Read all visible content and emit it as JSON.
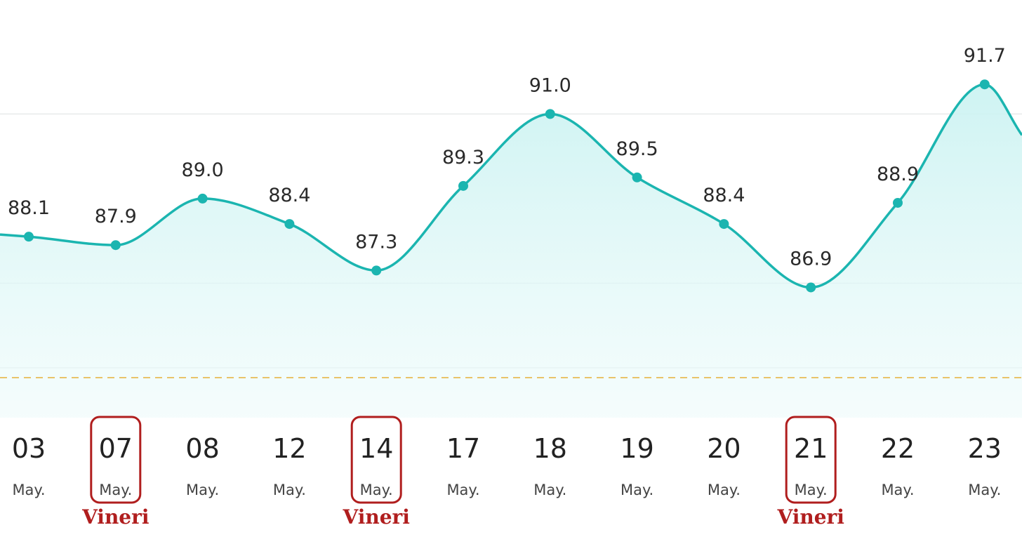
{
  "chart_data": {
    "type": "area",
    "title": "",
    "xlabel": "",
    "ylabel": "",
    "ylim": [
      84.9,
      92.45
    ],
    "grid": true,
    "reference_line": "dashed",
    "colors": {
      "line": "#1bb5b0",
      "fill": "#d8f6f6",
      "highlight": "#b01e1e",
      "reference": "#e8c36a"
    },
    "x": [
      {
        "day": "03",
        "month": "May.",
        "note": ""
      },
      {
        "day": "07",
        "month": "May.",
        "note": "Vineri"
      },
      {
        "day": "08",
        "month": "May.",
        "note": ""
      },
      {
        "day": "12",
        "month": "May.",
        "note": ""
      },
      {
        "day": "14",
        "month": "May.",
        "note": "Vineri"
      },
      {
        "day": "17",
        "month": "May.",
        "note": ""
      },
      {
        "day": "18",
        "month": "May.",
        "note": ""
      },
      {
        "day": "19",
        "month": "May.",
        "note": ""
      },
      {
        "day": "20",
        "month": "May.",
        "note": ""
      },
      {
        "day": "21",
        "month": "May.",
        "note": "Vineri"
      },
      {
        "day": "22",
        "month": "May.",
        "note": ""
      },
      {
        "day": "23",
        "month": "May.",
        "note": ""
      }
    ],
    "values": [
      88.1,
      87.9,
      89.0,
      88.4,
      87.3,
      89.3,
      91.0,
      89.5,
      88.4,
      86.9,
      88.9,
      91.7
    ],
    "value_labels": [
      "88.1",
      "87.9",
      "89.0",
      "88.4",
      "87.3",
      "89.3",
      "91.0",
      "89.5",
      "88.4",
      "86.9",
      "88.9",
      "91.7"
    ],
    "highlighted_days": [
      "07",
      "14",
      "21"
    ]
  }
}
